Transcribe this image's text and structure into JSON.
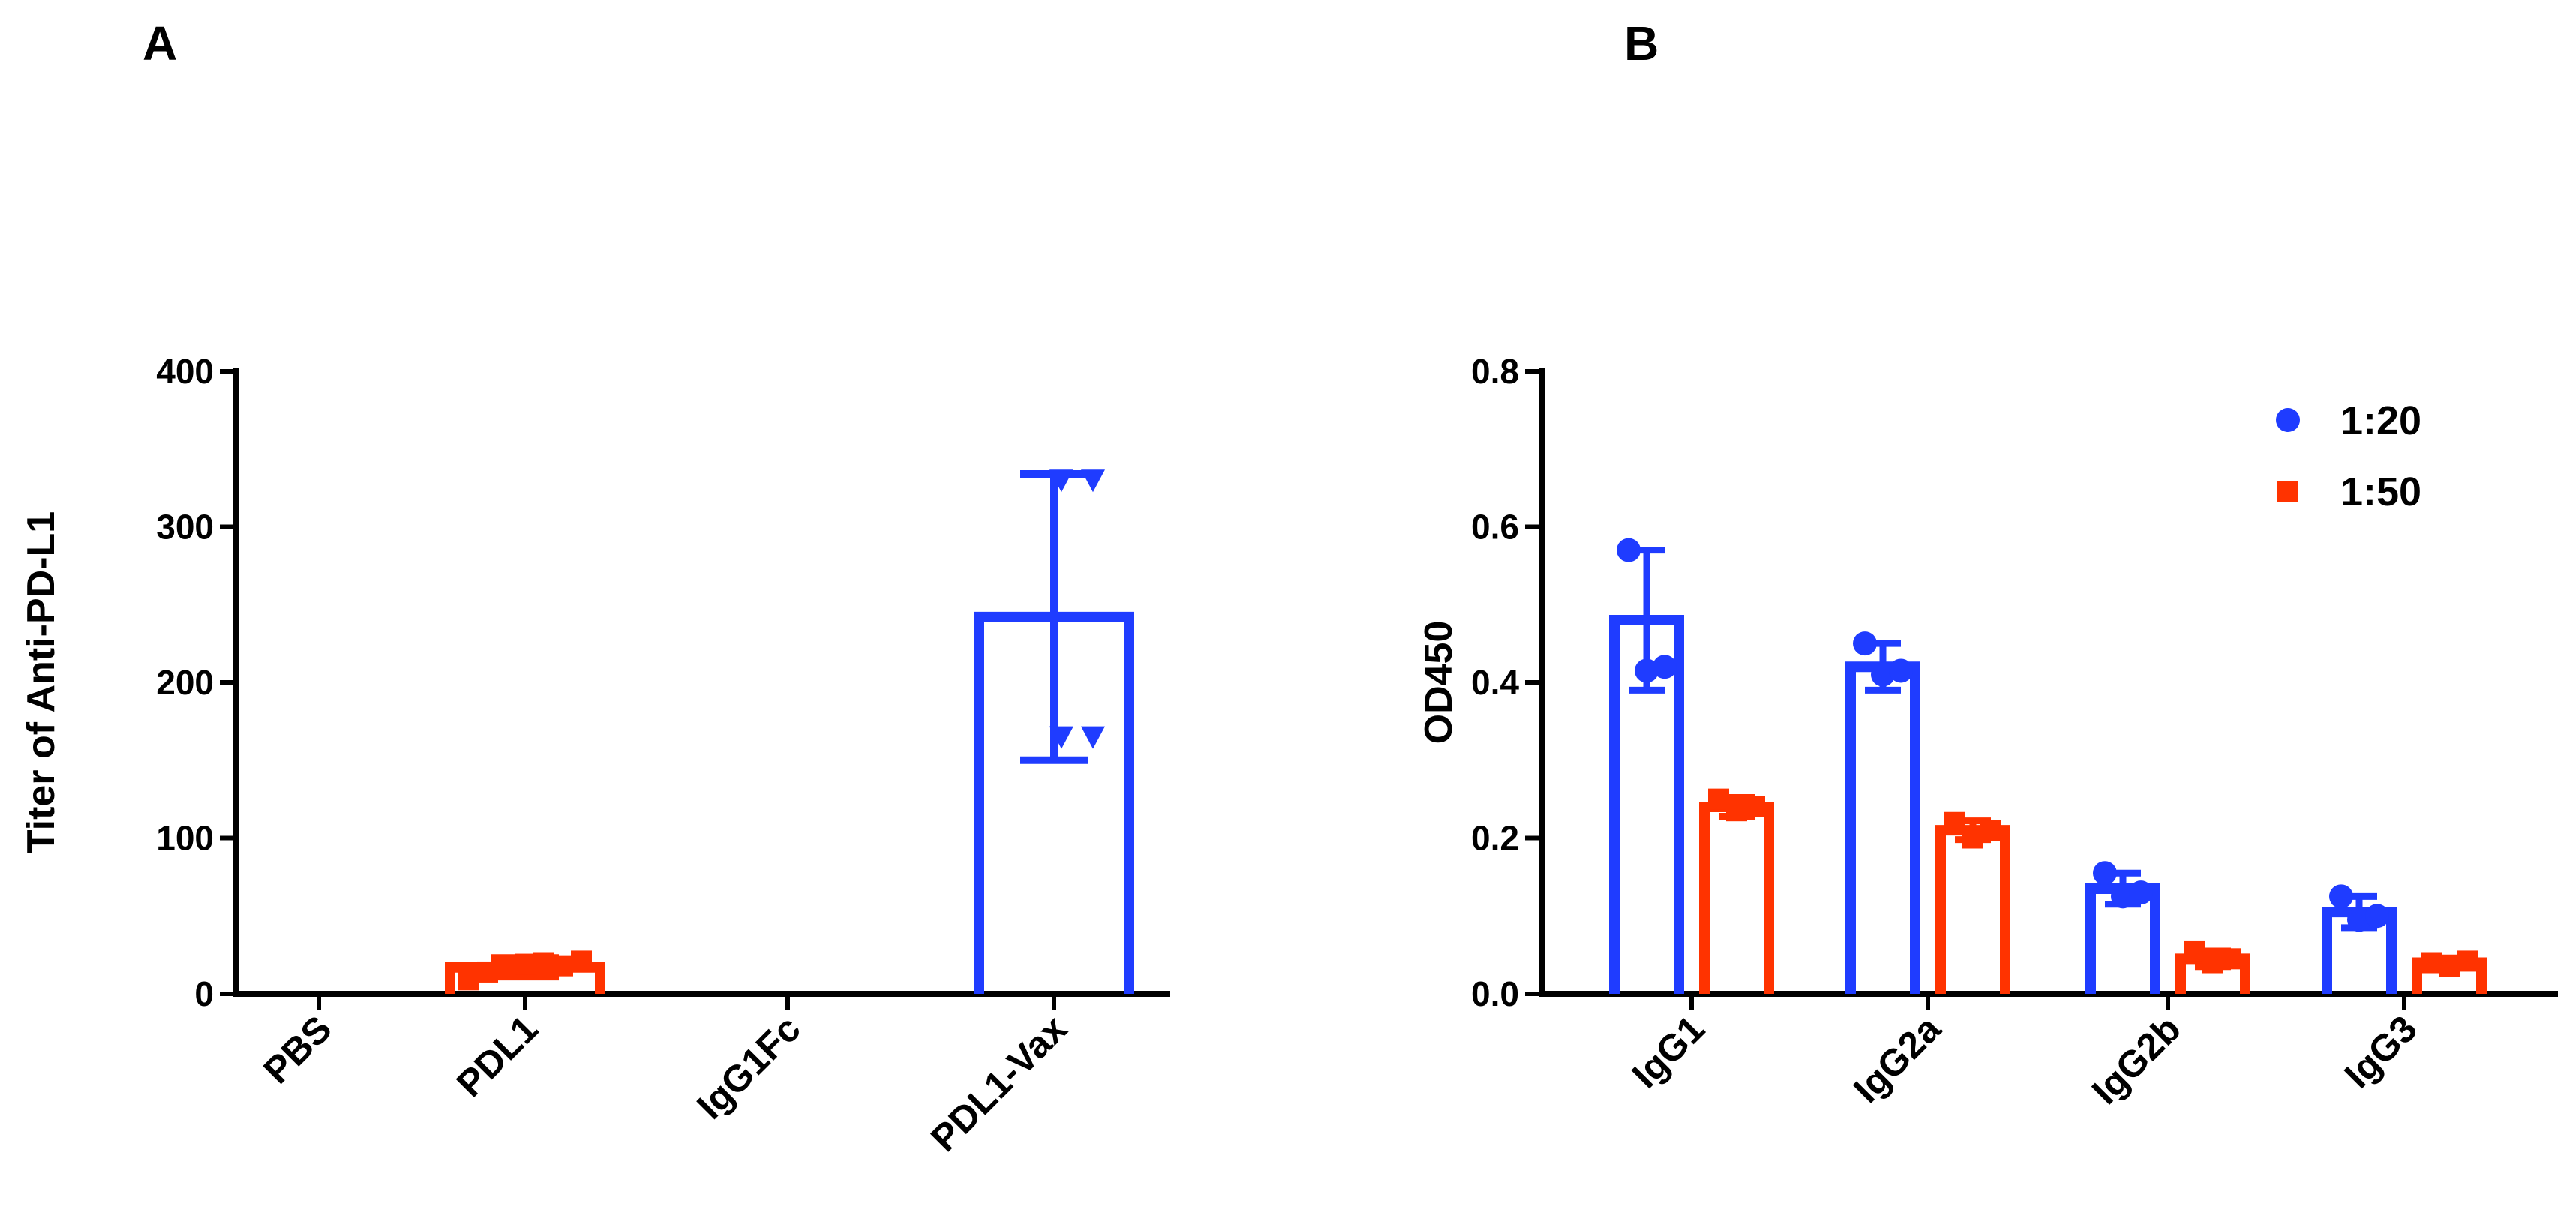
{
  "colors": {
    "blue": "#1f3cff",
    "red": "#ff3300",
    "black": "#000000"
  },
  "chart_data": [
    {
      "panel": "A",
      "type": "bar",
      "title": "",
      "xlabel": "",
      "ylabel": "Titer of Anti-PD-L1",
      "ylim": [
        0,
        400
      ],
      "yticks": [
        "0",
        "100",
        "200",
        "300",
        "400"
      ],
      "categories": [
        "PBS",
        "PDL1",
        "IgG1Fc",
        "PDL1-Vax"
      ],
      "values": [
        0,
        17,
        0,
        242
      ],
      "errors": [
        0,
        6,
        0,
        92
      ],
      "bar_colors": [
        "#1f3cff",
        "#ff3300",
        "#1f3cff",
        "#1f3cff"
      ],
      "marker": [
        "none",
        "square",
        "none",
        "triangle-down"
      ],
      "points": [
        [],
        [
          9,
          14,
          17,
          19,
          20,
          18,
          21
        ],
        [],
        [
          330,
          330,
          165,
          165
        ]
      ]
    },
    {
      "panel": "B",
      "type": "bar",
      "title": "",
      "xlabel": "",
      "ylabel": "OD450",
      "ylim": [
        0,
        0.8
      ],
      "yticks": [
        "0.0",
        "0.2",
        "0.4",
        "0.6",
        "0.8"
      ],
      "categories": [
        "IgG1",
        "IgG2a",
        "IgG2b",
        "IgG3"
      ],
      "legend": {
        "placement": "top-right",
        "entries": [
          "1:20",
          "1:50"
        ]
      },
      "series": [
        {
          "name": "1:20",
          "color": "#1f3cff",
          "marker": "circle",
          "values": [
            0.48,
            0.42,
            0.135,
            0.105
          ],
          "errors": [
            0.09,
            0.03,
            0.02,
            0.02
          ],
          "points": [
            [
              0.57,
              0.415,
              0.42
            ],
            [
              0.45,
              0.41,
              0.415
            ],
            [
              0.155,
              0.125,
              0.13
            ],
            [
              0.125,
              0.095,
              0.1
            ]
          ]
        },
        {
          "name": "1:50",
          "color": "#ff3300",
          "marker": "square",
          "values": [
            0.24,
            0.21,
            0.045,
            0.04
          ],
          "errors": [
            0.012,
            0.012,
            0.01,
            0.006
          ],
          "points": [
            [
              0.25,
              0.235,
              0.24
            ],
            [
              0.22,
              0.2,
              0.21
            ],
            [
              0.055,
              0.04,
              0.045
            ],
            [
              0.04,
              0.035,
              0.042
            ]
          ]
        }
      ]
    }
  ]
}
